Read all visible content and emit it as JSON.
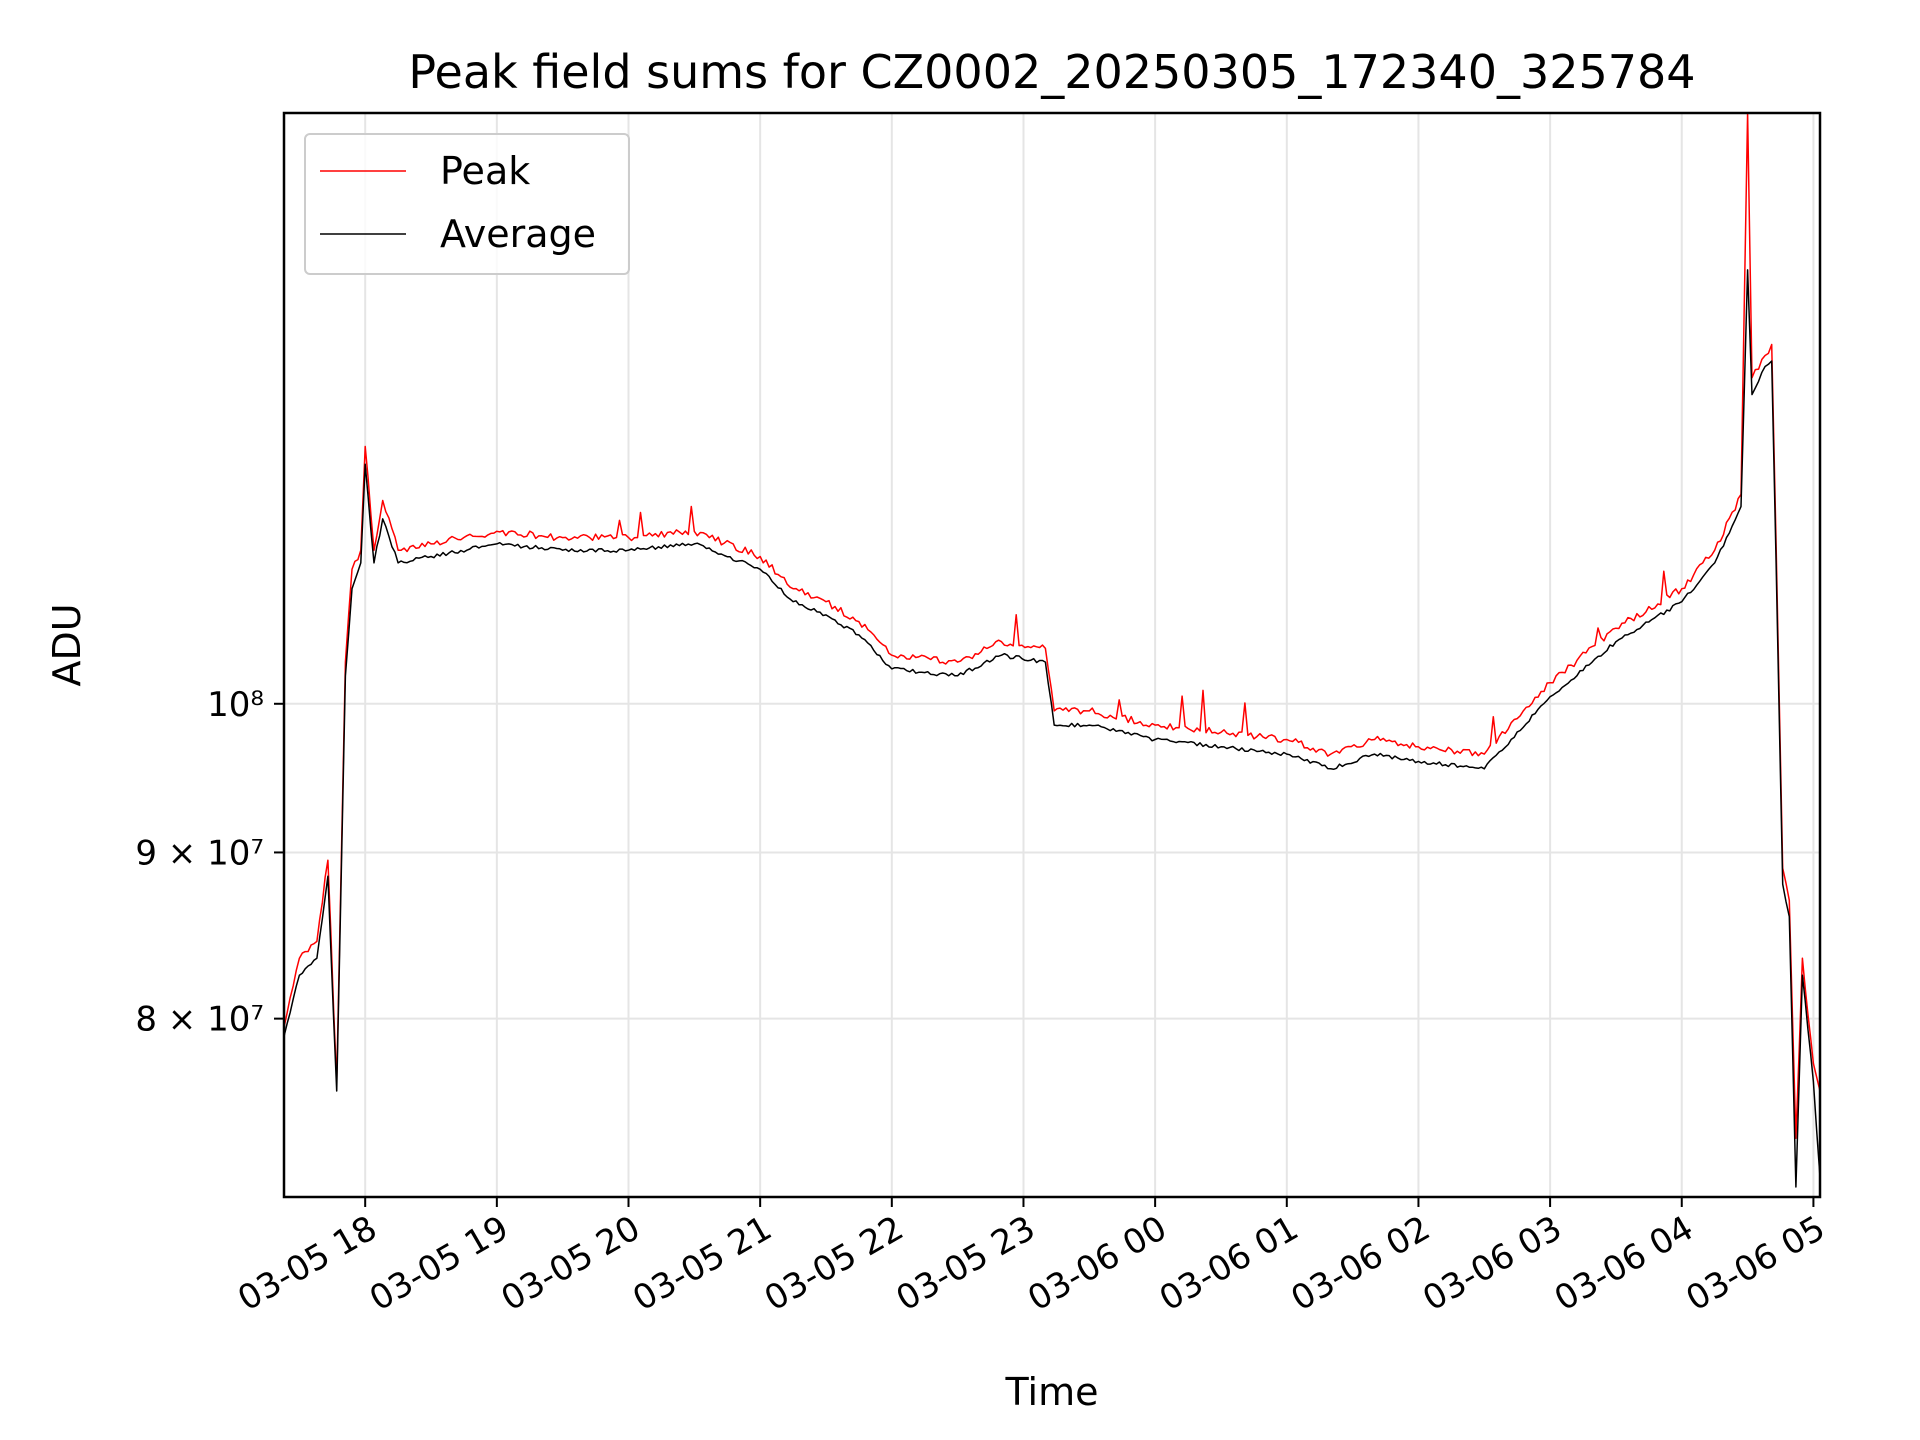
{
  "chart_data": {
    "type": "line",
    "title": "Peak field sums for CZ0002_20250305_172340_325784",
    "xlabel": "Time",
    "ylabel": "ADU",
    "y_scale": "log",
    "grid": true,
    "legend_placement": "top-left",
    "xlim": [
      "2025-03-05 17:23",
      "2025-03-06 05:03"
    ],
    "ylim": [
      70500000,
      152000000
    ],
    "x_ticks": [
      "03-05 18",
      "03-05 19",
      "03-05 20",
      "03-05 21",
      "03-05 22",
      "03-05 23",
      "03-06 00",
      "03-06 01",
      "03-06 02",
      "03-06 03",
      "03-06 04",
      "03-06 05"
    ],
    "x_tick_values": [
      "2025-03-05 18:00",
      "2025-03-05 19:00",
      "2025-03-05 20:00",
      "2025-03-05 21:00",
      "2025-03-05 22:00",
      "2025-03-05 23:00",
      "2025-03-06 00:00",
      "2025-03-06 01:00",
      "2025-03-06 02:00",
      "2025-03-06 03:00",
      "2025-03-06 04:00",
      "2025-03-06 05:00"
    ],
    "y_ticks": [
      {
        "value": 80000000,
        "label": "8 × 10⁷"
      },
      {
        "value": 90000000,
        "label": "9 × 10⁷"
      },
      {
        "value": 100000000,
        "label": "10⁸"
      }
    ],
    "series": [
      {
        "name": "Peak",
        "color": "#ff0000",
        "points": [
          [
            "2025-03-05 17:23",
            79500000
          ],
          [
            "2025-03-05 17:30",
            83500000
          ],
          [
            "2025-03-05 17:38",
            84500000
          ],
          [
            "2025-03-05 17:43",
            89500000
          ],
          [
            "2025-03-05 17:47",
            76500000
          ],
          [
            "2025-03-05 17:51",
            103000000
          ],
          [
            "2025-03-05 17:54",
            110000000
          ],
          [
            "2025-03-05 17:58",
            111500000
          ],
          [
            "2025-03-05 18:00",
            120000000
          ],
          [
            "2025-03-05 18:04",
            111500000
          ],
          [
            "2025-03-05 18:08",
            115500000
          ],
          [
            "2025-03-05 18:15",
            111500000
          ],
          [
            "2025-03-05 18:30",
            112000000
          ],
          [
            "2025-03-05 19:00",
            113000000
          ],
          [
            "2025-03-05 19:30",
            112500000
          ],
          [
            "2025-03-05 20:00",
            112500000
          ],
          [
            "2025-03-05 20:30",
            113000000
          ],
          [
            "2025-03-05 21:00",
            111000000
          ],
          [
            "2025-03-05 21:15",
            108500000
          ],
          [
            "2025-03-05 21:30",
            107500000
          ],
          [
            "2025-03-05 21:45",
            106000000
          ],
          [
            "2025-03-05 22:00",
            103500000
          ],
          [
            "2025-03-05 22:30",
            103000000
          ],
          [
            "2025-03-05 22:50",
            104500000
          ],
          [
            "2025-03-05 23:10",
            104000000
          ],
          [
            "2025-03-05 23:14",
            99500000
          ],
          [
            "2025-03-05 23:30",
            99500000
          ],
          [
            "2025-03-06 00:00",
            98500000
          ],
          [
            "2025-03-06 00:30",
            98000000
          ],
          [
            "2025-03-06 01:00",
            97500000
          ],
          [
            "2025-03-06 01:20",
            96500000
          ],
          [
            "2025-03-06 01:40",
            97500000
          ],
          [
            "2025-03-06 02:00",
            97000000
          ],
          [
            "2025-03-06 02:30",
            96500000
          ],
          [
            "2025-03-06 03:00",
            101500000
          ],
          [
            "2025-03-06 03:30",
            105500000
          ],
          [
            "2025-03-06 04:00",
            108500000
          ],
          [
            "2025-03-06 04:15",
            111500000
          ],
          [
            "2025-03-06 04:27",
            116000000
          ],
          [
            "2025-03-06 04:30",
            152000000
          ],
          [
            "2025-03-06 04:32",
            126000000
          ],
          [
            "2025-03-06 04:38",
            128000000
          ],
          [
            "2025-03-06 04:41",
            129000000
          ],
          [
            "2025-03-06 04:43",
            112000000
          ],
          [
            "2025-03-06 04:46",
            89000000
          ],
          [
            "2025-03-06 04:49",
            87000000
          ],
          [
            "2025-03-06 04:52",
            73500000
          ],
          [
            "2025-03-06 04:55",
            83500000
          ],
          [
            "2025-03-06 05:00",
            77500000
          ],
          [
            "2025-03-06 05:03",
            76000000
          ]
        ]
      },
      {
        "name": "Average",
        "color": "#000000",
        "points": [
          [
            "2025-03-05 17:23",
            79000000
          ],
          [
            "2025-03-05 17:30",
            82500000
          ],
          [
            "2025-03-05 17:38",
            83500000
          ],
          [
            "2025-03-05 17:43",
            88500000
          ],
          [
            "2025-03-05 17:47",
            76000000
          ],
          [
            "2025-03-05 17:51",
            102000000
          ],
          [
            "2025-03-05 17:54",
            108500000
          ],
          [
            "2025-03-05 17:58",
            110500000
          ],
          [
            "2025-03-05 18:00",
            118500000
          ],
          [
            "2025-03-05 18:04",
            110500000
          ],
          [
            "2025-03-05 18:08",
            114000000
          ],
          [
            "2025-03-05 18:15",
            110500000
          ],
          [
            "2025-03-05 18:30",
            111000000
          ],
          [
            "2025-03-05 19:00",
            112000000
          ],
          [
            "2025-03-05 19:30",
            111500000
          ],
          [
            "2025-03-05 20:00",
            111500000
          ],
          [
            "2025-03-05 20:30",
            112000000
          ],
          [
            "2025-03-05 21:00",
            110000000
          ],
          [
            "2025-03-05 21:15",
            107500000
          ],
          [
            "2025-03-05 21:30",
            106500000
          ],
          [
            "2025-03-05 21:45",
            105000000
          ],
          [
            "2025-03-05 22:00",
            102500000
          ],
          [
            "2025-03-05 22:30",
            102000000
          ],
          [
            "2025-03-05 22:50",
            103500000
          ],
          [
            "2025-03-05 23:10",
            103000000
          ],
          [
            "2025-03-05 23:14",
            98500000
          ],
          [
            "2025-03-05 23:30",
            98500000
          ],
          [
            "2025-03-06 00:00",
            97500000
          ],
          [
            "2025-03-06 00:30",
            97000000
          ],
          [
            "2025-03-06 01:00",
            96500000
          ],
          [
            "2025-03-06 01:20",
            95500000
          ],
          [
            "2025-03-06 01:40",
            96500000
          ],
          [
            "2025-03-06 02:00",
            96000000
          ],
          [
            "2025-03-06 02:30",
            95500000
          ],
          [
            "2025-03-06 03:00",
            100500000
          ],
          [
            "2025-03-06 03:30",
            104500000
          ],
          [
            "2025-03-06 04:00",
            107500000
          ],
          [
            "2025-03-06 04:15",
            110500000
          ],
          [
            "2025-03-06 04:27",
            115000000
          ],
          [
            "2025-03-06 04:30",
            136000000
          ],
          [
            "2025-03-06 04:32",
            124500000
          ],
          [
            "2025-03-06 04:38",
            127000000
          ],
          [
            "2025-03-06 04:41",
            127500000
          ],
          [
            "2025-03-06 04:43",
            110500000
          ],
          [
            "2025-03-06 04:46",
            88000000
          ],
          [
            "2025-03-06 04:49",
            86000000
          ],
          [
            "2025-03-06 04:52",
            71000000
          ],
          [
            "2025-03-06 04:55",
            82500000
          ],
          [
            "2025-03-06 05:00",
            76500000
          ],
          [
            "2025-03-06 05:03",
            71500000
          ]
        ]
      }
    ]
  }
}
